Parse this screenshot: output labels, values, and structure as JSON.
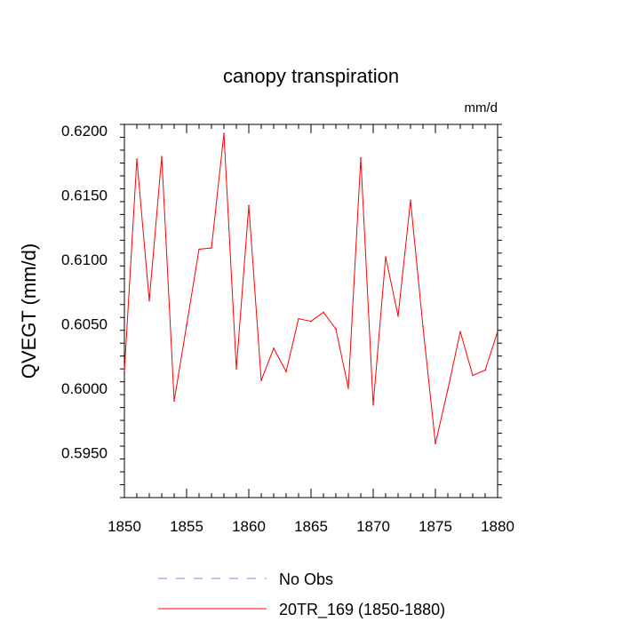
{
  "chart_data": {
    "type": "line",
    "title": "canopy transpiration",
    "units": "mm/d",
    "ylabel": "QVEGT  (mm/d)",
    "xlabel": "",
    "xlim": [
      1850,
      1880
    ],
    "ylim": [
      0.5915,
      0.6205
    ],
    "x_ticks": [
      1850,
      1855,
      1860,
      1865,
      1870,
      1875,
      1880
    ],
    "x_tick_labels": [
      "1850",
      "1855",
      "1860",
      "1865",
      "1870",
      "1875",
      "1880"
    ],
    "y_ticks": [
      0.595,
      0.6,
      0.605,
      0.61,
      0.615,
      0.62
    ],
    "y_tick_labels": [
      "0.5950",
      "0.6000",
      "0.6050",
      "0.6100",
      "0.6150",
      "0.6200"
    ],
    "grid": false,
    "legend_position": "bottom",
    "series": [
      {
        "name": "No Obs",
        "color": "#8080ff",
        "dashed": true,
        "x": [],
        "values": []
      },
      {
        "name": "20TR_169 (1850-1880)",
        "color": "#ff0000",
        "dashed": false,
        "x": [
          1850,
          1851,
          1852,
          1853,
          1854,
          1855,
          1856,
          1857,
          1858,
          1859,
          1860,
          1861,
          1862,
          1863,
          1864,
          1865,
          1866,
          1867,
          1868,
          1869,
          1870,
          1871,
          1872,
          1873,
          1874,
          1875,
          1876,
          1877,
          1878,
          1879,
          1880
        ],
        "values": [
          0.6013,
          0.6178,
          0.6068,
          0.618,
          0.599,
          0.6049,
          0.6108,
          0.6109,
          0.6198,
          0.6015,
          0.6142,
          0.6006,
          0.6031,
          0.6013,
          0.6054,
          0.6052,
          0.6059,
          0.6046,
          0.6,
          0.6179,
          0.5987,
          0.6102,
          0.6056,
          0.6146,
          0.6048,
          0.5957,
          0.5999,
          0.6044,
          0.601,
          0.6014,
          0.6044
        ]
      }
    ]
  }
}
